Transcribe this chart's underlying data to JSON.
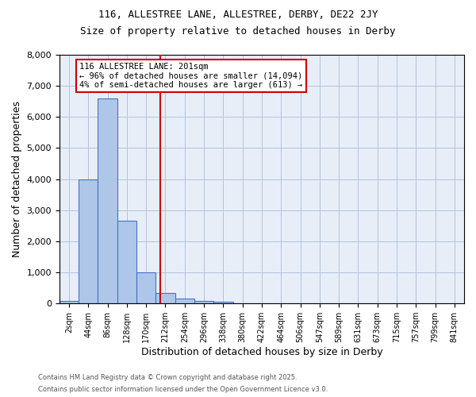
{
  "title1": "116, ALLESTREE LANE, ALLESTREE, DERBY, DE22 2JY",
  "title2": "Size of property relative to detached houses in Derby",
  "xlabel": "Distribution of detached houses by size in Derby",
  "ylabel": "Number of detached properties",
  "bar_labels": [
    "2sqm",
    "44sqm",
    "86sqm",
    "128sqm",
    "170sqm",
    "212sqm",
    "254sqm",
    "296sqm",
    "338sqm",
    "380sqm",
    "422sqm",
    "464sqm",
    "506sqm",
    "547sqm",
    "589sqm",
    "631sqm",
    "673sqm",
    "715sqm",
    "757sqm",
    "799sqm",
    "841sqm"
  ],
  "bar_values": [
    75,
    4000,
    6600,
    2650,
    1000,
    350,
    150,
    75,
    50,
    0,
    0,
    0,
    0,
    0,
    0,
    0,
    0,
    0,
    0,
    0,
    0
  ],
  "bar_color": "#aec6e8",
  "bar_edge_color": "#4472c4",
  "ylim": [
    0,
    8000
  ],
  "yticks": [
    0,
    1000,
    2000,
    3000,
    4000,
    5000,
    6000,
    7000,
    8000
  ],
  "vline_x": 4.73,
  "vline_color": "#cc0000",
  "annotation_text": "116 ALLESTREE LANE: 201sqm\n← 96% of detached houses are smaller (14,094)\n4% of semi-detached houses are larger (613) →",
  "annotation_box_color": "#cc0000",
  "grid_color": "#b0c4de",
  "background_color": "#e8eef8",
  "footnote1": "Contains HM Land Registry data © Crown copyright and database right 2025.",
  "footnote2": "Contains public sector information licensed under the Open Government Licence v3.0."
}
